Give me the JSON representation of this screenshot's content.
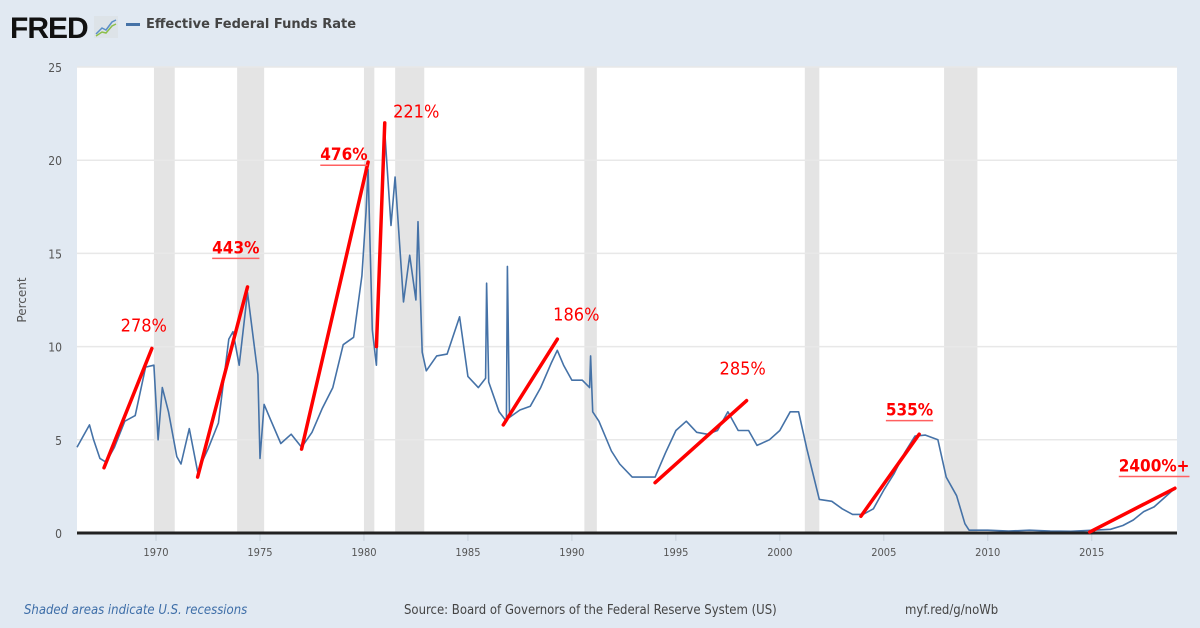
{
  "header": {
    "logo": "FRED",
    "legend_label": "Effective Federal Funds Rate"
  },
  "footer": {
    "recession_note": "Shaded areas indicate U.S. recessions",
    "source": "Source: Board of Governors of the Federal Reserve System (US)",
    "short_link": "myf.red/g/noWb"
  },
  "colors": {
    "series": "#4572a7",
    "annotation": "#ff0000",
    "recession": "#e4e4e4",
    "background": "#e1e9f2"
  },
  "chart_data": {
    "type": "line",
    "title": "",
    "xlabel": "",
    "ylabel": "Percent",
    "xlim": [
      1966.2,
      2019.1
    ],
    "ylim": [
      0,
      25
    ],
    "grid": true,
    "legend": "top-left",
    "yticks": [
      "0",
      "5",
      "10",
      "15",
      "20",
      "25"
    ],
    "xticks": [
      "1970",
      "1975",
      "1980",
      "1985",
      "1990",
      "1995",
      "2000",
      "2005",
      "2010",
      "2015"
    ],
    "series": [
      {
        "name": "Effective Federal Funds Rate",
        "points": [
          [
            1966.2,
            4.6
          ],
          [
            1966.5,
            5.2
          ],
          [
            1966.8,
            5.8
          ],
          [
            1967.0,
            5.0
          ],
          [
            1967.3,
            4.0
          ],
          [
            1967.6,
            3.8
          ],
          [
            1968.0,
            4.6
          ],
          [
            1968.5,
            6.0
          ],
          [
            1969.0,
            6.3
          ],
          [
            1969.5,
            8.9
          ],
          [
            1969.9,
            9.0
          ],
          [
            1970.1,
            5.0
          ],
          [
            1970.3,
            7.8
          ],
          [
            1970.6,
            6.5
          ],
          [
            1971.0,
            4.1
          ],
          [
            1971.2,
            3.7
          ],
          [
            1971.6,
            5.6
          ],
          [
            1972.0,
            3.3
          ],
          [
            1972.5,
            4.5
          ],
          [
            1973.0,
            5.9
          ],
          [
            1973.5,
            10.4
          ],
          [
            1973.7,
            10.8
          ],
          [
            1974.0,
            9.0
          ],
          [
            1974.4,
            12.9
          ],
          [
            1974.9,
            8.5
          ],
          [
            1975.0,
            4.0
          ],
          [
            1975.2,
            6.9
          ],
          [
            1975.5,
            6.1
          ],
          [
            1976.0,
            4.8
          ],
          [
            1976.5,
            5.3
          ],
          [
            1977.0,
            4.6
          ],
          [
            1977.5,
            5.4
          ],
          [
            1978.0,
            6.7
          ],
          [
            1978.5,
            7.8
          ],
          [
            1979.0,
            10.1
          ],
          [
            1979.5,
            10.5
          ],
          [
            1979.9,
            13.8
          ],
          [
            1980.1,
            17.2
          ],
          [
            1980.2,
            19.5
          ],
          [
            1980.4,
            10.9
          ],
          [
            1980.6,
            9.0
          ],
          [
            1980.9,
            18.9
          ],
          [
            1981.0,
            21.5
          ],
          [
            1981.3,
            16.5
          ],
          [
            1981.5,
            19.1
          ],
          [
            1981.9,
            12.4
          ],
          [
            1982.2,
            14.9
          ],
          [
            1982.5,
            12.5
          ],
          [
            1982.6,
            16.7
          ],
          [
            1982.8,
            9.7
          ],
          [
            1983.0,
            8.7
          ],
          [
            1983.5,
            9.5
          ],
          [
            1984.0,
            9.6
          ],
          [
            1984.6,
            11.6
          ],
          [
            1985.0,
            8.4
          ],
          [
            1985.5,
            7.8
          ],
          [
            1985.85,
            8.3
          ],
          [
            1985.9,
            13.4
          ],
          [
            1986.0,
            8.1
          ],
          [
            1986.5,
            6.5
          ],
          [
            1986.85,
            6.0
          ],
          [
            1986.9,
            14.3
          ],
          [
            1987.0,
            6.2
          ],
          [
            1987.5,
            6.6
          ],
          [
            1988.0,
            6.8
          ],
          [
            1988.5,
            7.8
          ],
          [
            1989.0,
            9.1
          ],
          [
            1989.3,
            9.8
          ],
          [
            1989.6,
            9.0
          ],
          [
            1990.0,
            8.2
          ],
          [
            1990.5,
            8.2
          ],
          [
            1990.85,
            7.8
          ],
          [
            1990.9,
            9.5
          ],
          [
            1991.0,
            6.5
          ],
          [
            1991.3,
            6.0
          ],
          [
            1991.9,
            4.4
          ],
          [
            1992.3,
            3.7
          ],
          [
            1992.9,
            3.0
          ],
          [
            1993.5,
            3.0
          ],
          [
            1994.0,
            3.0
          ],
          [
            1994.5,
            4.3
          ],
          [
            1995.0,
            5.5
          ],
          [
            1995.5,
            6.0
          ],
          [
            1996.0,
            5.4
          ],
          [
            1996.5,
            5.3
          ],
          [
            1997.0,
            5.5
          ],
          [
            1997.5,
            6.5
          ],
          [
            1998.0,
            5.5
          ],
          [
            1998.5,
            5.5
          ],
          [
            1998.9,
            4.7
          ],
          [
            1999.5,
            5.0
          ],
          [
            2000.0,
            5.5
          ],
          [
            2000.5,
            6.5
          ],
          [
            2000.9,
            6.5
          ],
          [
            2001.3,
            4.5
          ],
          [
            2001.9,
            1.8
          ],
          [
            2002.5,
            1.7
          ],
          [
            2003.0,
            1.3
          ],
          [
            2003.5,
            1.0
          ],
          [
            2004.0,
            1.0
          ],
          [
            2004.5,
            1.3
          ],
          [
            2005.0,
            2.3
          ],
          [
            2005.5,
            3.2
          ],
          [
            2006.0,
            4.3
          ],
          [
            2006.5,
            5.2
          ],
          [
            2007.0,
            5.25
          ],
          [
            2007.6,
            5.0
          ],
          [
            2008.0,
            3.0
          ],
          [
            2008.5,
            2.0
          ],
          [
            2008.9,
            0.5
          ],
          [
            2009.1,
            0.15
          ],
          [
            2010.0,
            0.15
          ],
          [
            2011.0,
            0.1
          ],
          [
            2012.0,
            0.15
          ],
          [
            2013.0,
            0.1
          ],
          [
            2014.0,
            0.09
          ],
          [
            2015.9,
            0.2
          ],
          [
            2016.5,
            0.4
          ],
          [
            2017.0,
            0.7
          ],
          [
            2017.5,
            1.15
          ],
          [
            2018.0,
            1.4
          ],
          [
            2018.5,
            1.9
          ],
          [
            2019.0,
            2.4
          ]
        ]
      }
    ],
    "recessions": [
      [
        1969.9,
        1970.9
      ],
      [
        1973.9,
        1975.2
      ],
      [
        1980.0,
        1980.5
      ],
      [
        1981.5,
        1982.9
      ],
      [
        1990.6,
        1991.2
      ],
      [
        2001.2,
        2001.9
      ],
      [
        2007.9,
        2009.5
      ]
    ],
    "annotations": [
      {
        "label": "278%",
        "underline": false,
        "from": [
          1967.5,
          3.5
        ],
        "to": [
          1969.8,
          9.9
        ],
        "label_at": [
          1968.3,
          10.8
        ]
      },
      {
        "label": "443%",
        "underline": true,
        "from": [
          1972.0,
          3.0
        ],
        "to": [
          1974.4,
          13.2
        ],
        "label_at": [
          1972.7,
          15.0
        ]
      },
      {
        "label": "476%",
        "underline": true,
        "from": [
          1977.0,
          4.5
        ],
        "to": [
          1980.2,
          19.9
        ],
        "label_at": [
          1977.9,
          20.0
        ]
      },
      {
        "label": "221%",
        "underline": false,
        "from": [
          1980.6,
          10.0
        ],
        "to": [
          1981.0,
          22.0
        ],
        "label_at": [
          1981.4,
          22.3
        ]
      },
      {
        "label": "186%",
        "underline": false,
        "from": [
          1986.7,
          5.8
        ],
        "to": [
          1989.3,
          10.4
        ],
        "label_at": [
          1989.1,
          11.4
        ]
      },
      {
        "label": "285%",
        "underline": false,
        "from": [
          1994.0,
          2.7
        ],
        "to": [
          1998.4,
          7.1
        ],
        "label_at": [
          1997.1,
          8.5
        ]
      },
      {
        "label": "535%",
        "underline": true,
        "from": [
          2003.9,
          0.9
        ],
        "to": [
          2006.7,
          5.3
        ],
        "label_at": [
          2005.1,
          6.3
        ]
      },
      {
        "label": "2400%+",
        "underline": true,
        "from": [
          2014.9,
          0.05
        ],
        "to": [
          2019.0,
          2.4
        ],
        "label_at": [
          2016.3,
          3.3
        ]
      }
    ]
  }
}
